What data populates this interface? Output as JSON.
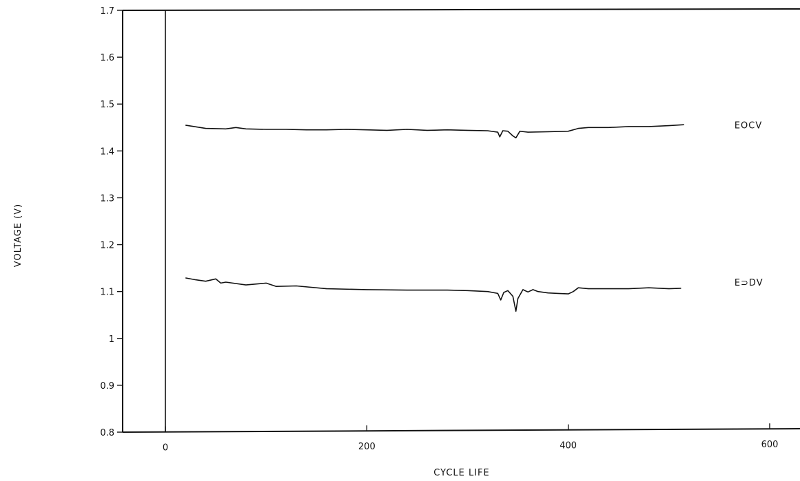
{
  "chart_data": {
    "type": "line",
    "xlabel": "CYCLE LIFE",
    "ylabel": "VOLTAGE (V)",
    "xlim": [
      -140,
      640
    ],
    "ylim": [
      0.8,
      1.7
    ],
    "x_ticks": [
      0,
      200,
      400,
      600
    ],
    "y_ticks": [
      0.8,
      0.9,
      1,
      1.1,
      1.2,
      1.3,
      1.4,
      1.5,
      1.6,
      1.7
    ],
    "grid": false,
    "vertical_reference_x": 0,
    "series": [
      {
        "name": "EOCV",
        "color": "#111111",
        "x": [
          20,
          40,
          60,
          70,
          80,
          100,
          120,
          140,
          160,
          180,
          200,
          220,
          240,
          260,
          280,
          300,
          320,
          330,
          332,
          335,
          340,
          345,
          348,
          352,
          360,
          380,
          400,
          410,
          420,
          440,
          460,
          480,
          500,
          515
        ],
        "y": [
          1.455,
          1.448,
          1.447,
          1.45,
          1.447,
          1.446,
          1.446,
          1.445,
          1.445,
          1.446,
          1.445,
          1.444,
          1.446,
          1.444,
          1.445,
          1.444,
          1.443,
          1.44,
          1.43,
          1.443,
          1.442,
          1.432,
          1.428,
          1.442,
          1.44,
          1.441,
          1.442,
          1.448,
          1.45,
          1.45,
          1.452,
          1.452,
          1.454,
          1.456
        ]
      },
      {
        "name": "EODV",
        "color": "#111111",
        "x": [
          20,
          30,
          40,
          50,
          55,
          60,
          80,
          100,
          110,
          130,
          160,
          200,
          240,
          280,
          300,
          320,
          330,
          333,
          336,
          340,
          345,
          348,
          350,
          355,
          360,
          365,
          370,
          380,
          390,
          400,
          405,
          410,
          420,
          440,
          460,
          480,
          500,
          512
        ],
        "y": [
          1.129,
          1.125,
          1.122,
          1.127,
          1.118,
          1.12,
          1.114,
          1.118,
          1.111,
          1.112,
          1.106,
          1.104,
          1.103,
          1.103,
          1.102,
          1.1,
          1.096,
          1.082,
          1.098,
          1.102,
          1.09,
          1.058,
          1.085,
          1.104,
          1.099,
          1.104,
          1.1,
          1.097,
          1.096,
          1.095,
          1.1,
          1.108,
          1.106,
          1.106,
          1.106,
          1.108,
          1.106,
          1.107
        ]
      }
    ],
    "labels": [
      {
        "text": "EOCV",
        "x": 565,
        "y": 1.448
      },
      {
        "text": "E⊃DV",
        "x": 565,
        "y": 1.113
      }
    ]
  }
}
